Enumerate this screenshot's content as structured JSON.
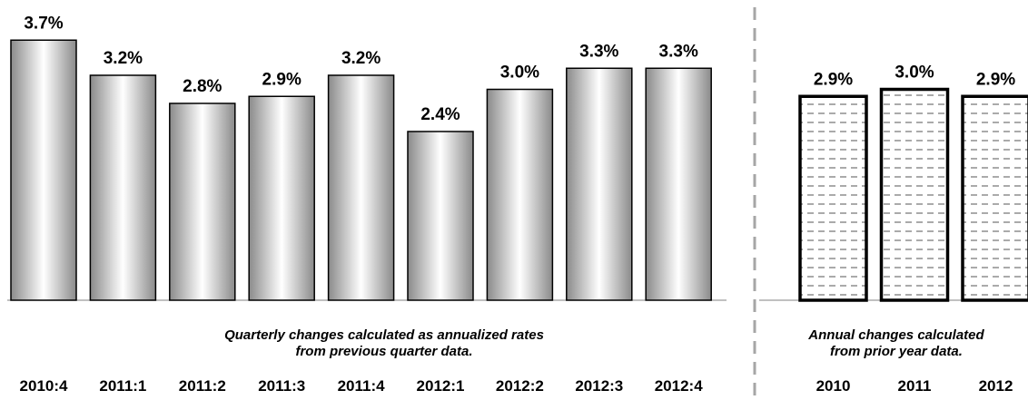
{
  "chart_data": [
    {
      "type": "bar",
      "categories": [
        "2010:4",
        "2011:1",
        "2011:2",
        "2011:3",
        "2011:4",
        "2012:1",
        "2012:2",
        "2012:3",
        "2012:4"
      ],
      "values": [
        3.7,
        3.2,
        2.8,
        2.9,
        3.2,
        2.4,
        3.0,
        3.3,
        3.3
      ],
      "value_labels": [
        "3.7%",
        "3.2%",
        "2.8%",
        "2.9%",
        "3.2%",
        "2.4%",
        "3.0%",
        "3.3%",
        "3.3%"
      ],
      "note_lines": [
        "Quarterly changes calculated as annualized rates",
        "from previous quarter data."
      ],
      "ylim": [
        0,
        4
      ],
      "fill": "gradient-gray",
      "grid": false,
      "legend": "none"
    },
    {
      "type": "bar",
      "categories": [
        "2010",
        "2011",
        "2012"
      ],
      "values": [
        2.9,
        3.0,
        2.9
      ],
      "value_labels": [
        "2.9%",
        "3.0%",
        "2.9%"
      ],
      "note_lines": [
        "Annual changes calculated",
        "from prior year data."
      ],
      "ylim": [
        0,
        4
      ],
      "fill": "dashed-pattern",
      "grid": false,
      "legend": "none"
    }
  ],
  "colors": {
    "bar_outline": "#000000",
    "gradient_dark": "#8a8a8a",
    "gradient_light": "#ffffff",
    "pattern_dash": "#555555",
    "divider": "#a6a6a6",
    "baseline": "#808080"
  }
}
